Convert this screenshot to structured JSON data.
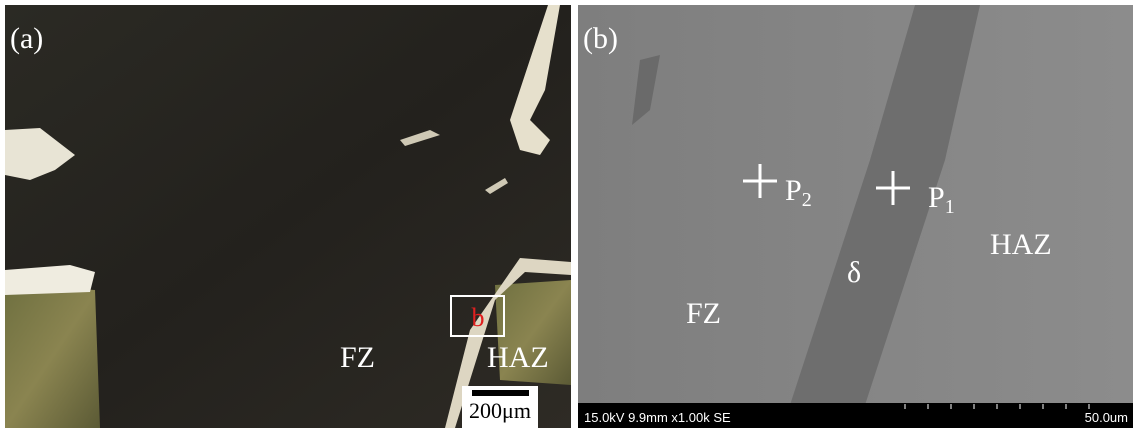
{
  "panel_a": {
    "label": "(a)",
    "fz": "FZ",
    "haz": "HAZ",
    "box_label": "b",
    "scale_bar": "200μm"
  },
  "panel_b": {
    "label": "(b)",
    "p2": {
      "text": "P",
      "sub": "2"
    },
    "p1": {
      "text": "P",
      "sub": "1"
    },
    "delta": "δ",
    "haz": "HAZ",
    "fz": "FZ",
    "info": "15.0kV 9.9mm x1.00k SE",
    "scale": "50.0um"
  }
}
